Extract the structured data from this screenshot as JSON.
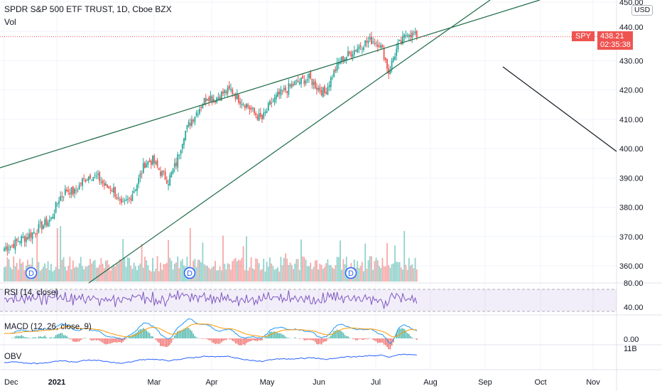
{
  "header": {
    "title": "SPDR S&P 500 ETF TRUST, 1D, Cboe BZX",
    "volume_label": "Vol"
  },
  "currency_badge": "USD",
  "last_price": {
    "symbol": "SPY",
    "value": "438.21",
    "countdown": "02:35:38",
    "color": "#ef5350"
  },
  "panes": {
    "rsi_label": "RSI (14, close)",
    "macd_label": "MACD (12, 26, close, 9)",
    "obv_label": "OBV"
  },
  "chart_data": [
    {
      "type": "candlestick",
      "title": "SPDR S&P 500 ETF TRUST, 1D, Cboe BZX",
      "y_ticks": [
        "450.00",
        "440.00",
        "430.00",
        "420.00",
        "410.00",
        "400.00",
        "390.00",
        "380.00",
        "370.00",
        "360.00"
      ],
      "ylim": [
        358,
        452
      ],
      "x_ticks": [
        "Dec",
        "2021",
        "Mar",
        "Apr",
        "May",
        "Jun",
        "Jul",
        "Aug",
        "Sep",
        "Oct",
        "Nov"
      ],
      "up_color": "#26a69a",
      "down_color": "#ef5350",
      "close_path": [
        [
          0,
          366
        ],
        [
          5,
          367
        ],
        [
          10,
          369
        ],
        [
          15,
          370
        ],
        [
          20,
          372
        ],
        [
          25,
          374
        ],
        [
          30,
          376
        ],
        [
          35,
          383
        ],
        [
          40,
          386
        ],
        [
          45,
          385
        ],
        [
          50,
          389
        ],
        [
          55,
          391
        ],
        [
          60,
          390
        ],
        [
          65,
          387
        ],
        [
          70,
          386
        ],
        [
          75,
          380
        ],
        [
          80,
          383
        ],
        [
          85,
          388
        ],
        [
          90,
          395
        ],
        [
          95,
          396
        ],
        [
          100,
          392
        ],
        [
          105,
          389
        ],
        [
          110,
          395
        ],
        [
          115,
          405
        ],
        [
          120,
          410
        ],
        [
          125,
          414
        ],
        [
          130,
          418
        ],
        [
          135,
          417
        ],
        [
          140,
          419
        ],
        [
          145,
          420
        ],
        [
          150,
          417
        ],
        [
          155,
          415
        ],
        [
          160,
          412
        ],
        [
          165,
          410
        ],
        [
          170,
          415
        ],
        [
          175,
          418
        ],
        [
          180,
          420
        ],
        [
          185,
          422
        ],
        [
          190,
          423
        ],
        [
          195,
          424
        ],
        [
          200,
          421
        ],
        [
          205,
          419
        ],
        [
          210,
          425
        ],
        [
          215,
          430
        ],
        [
          220,
          432
        ],
        [
          225,
          434
        ],
        [
          230,
          436
        ],
        [
          235,
          437
        ],
        [
          240,
          436
        ],
        [
          243,
          432
        ],
        [
          246,
          426
        ],
        [
          249,
          431
        ],
        [
          252,
          435
        ],
        [
          255,
          437
        ],
        [
          258,
          440
        ],
        [
          261,
          439
        ],
        [
          264,
          438.21
        ]
      ],
      "dividend_markers": [
        "D",
        "D",
        "D"
      ],
      "trend_lines": "rising wedge: upper and lower green trend lines plus one black line"
    },
    {
      "type": "bar",
      "series": [
        {
          "name": "Vol"
        }
      ]
    },
    {
      "type": "line",
      "series": [
        {
          "name": "RSI (14, close)"
        }
      ],
      "y_ticks": [
        "80.00",
        "40.00"
      ],
      "ylim": [
        30,
        80
      ]
    },
    {
      "type": "line",
      "series": [
        {
          "name": "MACD (12, 26, close, 9)"
        }
      ],
      "y_ticks": [
        "0.00"
      ]
    },
    {
      "type": "line",
      "series": [
        {
          "name": "OBV"
        }
      ],
      "y_ticks": [
        "11B"
      ]
    }
  ]
}
